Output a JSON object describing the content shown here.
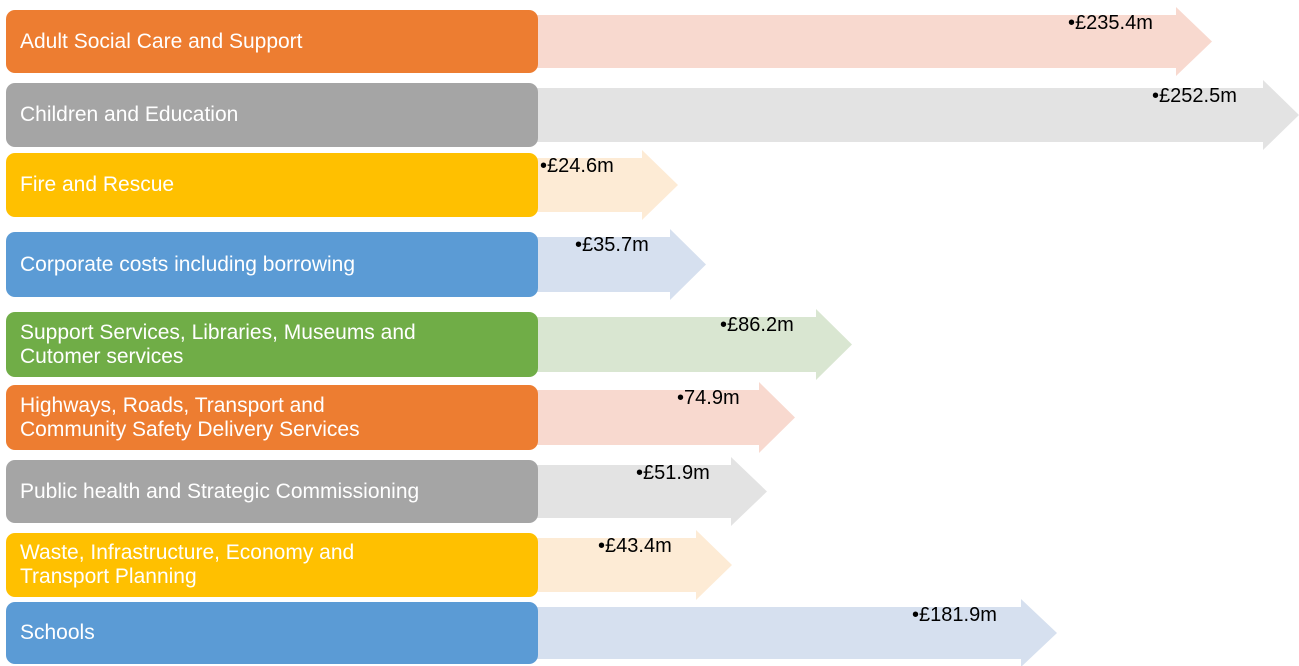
{
  "items": [
    {
      "label": [
        "Adult Social Care and Support"
      ],
      "value": "£235.4m"
    },
    {
      "label": [
        "Children and Education"
      ],
      "value": "£252.5m"
    },
    {
      "label": [
        "Fire and Rescue"
      ],
      "value": "£24.6m"
    },
    {
      "label": [
        "Corporate costs including borrowing"
      ],
      "value": "£35.7m"
    },
    {
      "label": [
        "Support Services, Libraries, Museums and",
        "Cutomer services"
      ],
      "value": "£86.2m"
    },
    {
      "label": [
        "Highways, Roads, Transport and",
        "Community Safety Delivery Services"
      ],
      "value": "74.9m"
    },
    {
      "label": [
        "Public health and Strategic Commissioning"
      ],
      "value": "£51.9m"
    },
    {
      "label": [
        "Waste, Infrastructure, Economy and",
        "Transport Planning"
      ],
      "value": "£43.4m"
    },
    {
      "label": [
        "Schools"
      ],
      "value": "£181.9m"
    }
  ]
}
